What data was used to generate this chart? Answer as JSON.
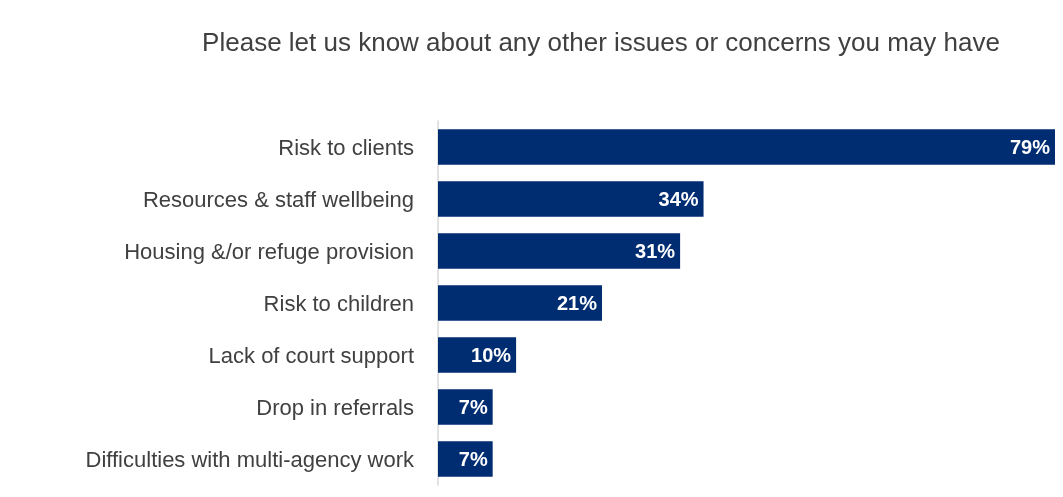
{
  "chart_data": {
    "type": "bar",
    "orientation": "horizontal",
    "title": "Please let us know about any other issues or concerns you may have",
    "categories": [
      "Risk to clients",
      "Resources & staff wellbeing",
      "Housing &/or refuge provision",
      "Risk to children",
      "Lack of court support",
      "Drop in referrals",
      "Difficulties with multi-agency work"
    ],
    "values": [
      79,
      34,
      31,
      21,
      10,
      7,
      7
    ],
    "value_labels": [
      "79%",
      "34%",
      "31%",
      "21%",
      "10%",
      "7%",
      "7%"
    ],
    "color": "#002d72"
  }
}
